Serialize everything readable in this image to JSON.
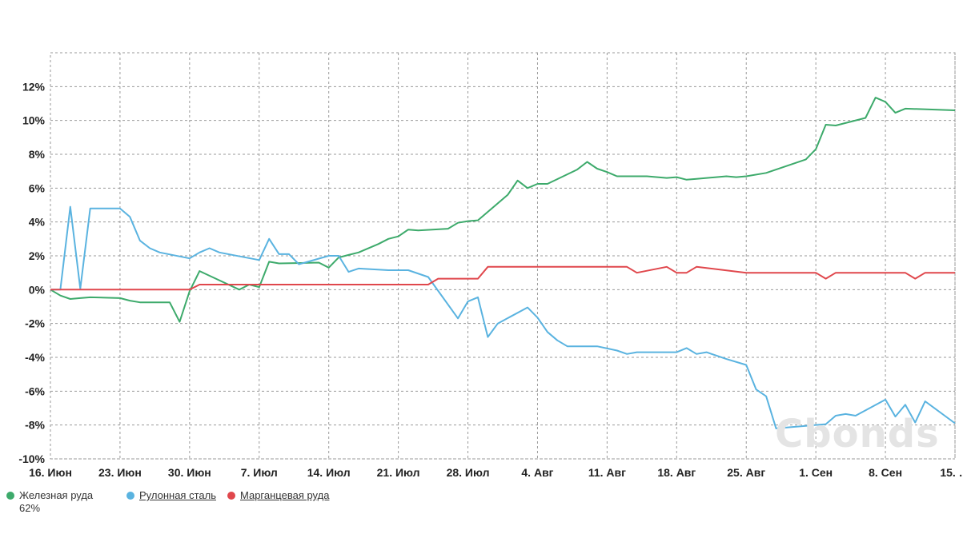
{
  "watermark": "Cbonds",
  "legend": [
    {
      "label": "Железная руда 62%",
      "color": "#3daa6b",
      "link": false
    },
    {
      "label": "Рулонная сталь",
      "color": "#5ab3e0",
      "link": true
    },
    {
      "label": "Марганцевая руда",
      "color": "#e0474c",
      "link": true
    }
  ],
  "chart_data": {
    "type": "line",
    "x_tick_labels": [
      "16. Июн",
      "23. Июн",
      "30. Июн",
      "7. Июл",
      "14. Июл",
      "21. Июл",
      "28. Июл",
      "4. Авг",
      "11. Авг",
      "18. Авг",
      "25. Авг",
      "1. Сен",
      "8. Сен",
      "15. …"
    ],
    "x_range_days": [
      0,
      91
    ],
    "y_tick_labels": [
      "12%",
      "10%",
      "8%",
      "6%",
      "4%",
      "2%",
      "0%",
      "-2%",
      "-4%",
      "-6%",
      "-8%",
      "-10%"
    ],
    "ylim": [
      -10,
      14
    ],
    "y_unit": "%",
    "grid": true,
    "legend_position": "bottom-left",
    "series": [
      {
        "name": "Железная руда 62%",
        "color": "#3daa6b",
        "points": [
          [
            0,
            0
          ],
          [
            1,
            -0.35
          ],
          [
            2,
            -0.55
          ],
          [
            3,
            -0.5
          ],
          [
            4,
            -0.45
          ],
          [
            7,
            -0.5
          ],
          [
            8,
            -0.65
          ],
          [
            9,
            -0.75
          ],
          [
            12,
            -0.75
          ],
          [
            13,
            -1.9
          ],
          [
            14,
            -0.1
          ],
          [
            15,
            1.1
          ],
          [
            19,
            0
          ],
          [
            20,
            0.3
          ],
          [
            21,
            0.15
          ],
          [
            22,
            1.65
          ],
          [
            23,
            1.55
          ],
          [
            27,
            1.6
          ],
          [
            28,
            1.3
          ],
          [
            29,
            1.9
          ],
          [
            30,
            2.05
          ],
          [
            31,
            2.2
          ],
          [
            33,
            2.7
          ],
          [
            34,
            3.0
          ],
          [
            35,
            3.15
          ],
          [
            36,
            3.55
          ],
          [
            37,
            3.5
          ],
          [
            40,
            3.6
          ],
          [
            41,
            3.95
          ],
          [
            42,
            4.05
          ],
          [
            43,
            4.1
          ],
          [
            44,
            4.6
          ],
          [
            46,
            5.6
          ],
          [
            47,
            6.45
          ],
          [
            48,
            6.0
          ],
          [
            49,
            6.25
          ],
          [
            50,
            6.25
          ],
          [
            53,
            7.1
          ],
          [
            54,
            7.55
          ],
          [
            55,
            7.15
          ],
          [
            56,
            6.95
          ],
          [
            57,
            6.7
          ],
          [
            60,
            6.7
          ],
          [
            62,
            6.6
          ],
          [
            63,
            6.65
          ],
          [
            64,
            6.5
          ],
          [
            65,
            6.55
          ],
          [
            68,
            6.7
          ],
          [
            69,
            6.65
          ],
          [
            70,
            6.7
          ],
          [
            72,
            6.9
          ],
          [
            76,
            7.7
          ],
          [
            77,
            8.3
          ],
          [
            78,
            9.75
          ],
          [
            79,
            9.7
          ],
          [
            82,
            10.15
          ],
          [
            83,
            11.35
          ],
          [
            84,
            11.1
          ],
          [
            85,
            10.45
          ],
          [
            86,
            10.7
          ],
          [
            91,
            10.6
          ]
        ]
      },
      {
        "name": "Рулонная сталь",
        "color": "#5ab3e0",
        "points": [
          [
            0,
            0
          ],
          [
            1,
            0
          ],
          [
            2,
            4.9
          ],
          [
            3,
            0.05
          ],
          [
            4,
            4.8
          ],
          [
            7,
            4.8
          ],
          [
            8,
            4.3
          ],
          [
            9,
            2.9
          ],
          [
            10,
            2.45
          ],
          [
            11,
            2.2
          ],
          [
            14,
            1.85
          ],
          [
            15,
            2.2
          ],
          [
            16,
            2.45
          ],
          [
            17,
            2.2
          ],
          [
            21,
            1.75
          ],
          [
            22,
            3.0
          ],
          [
            23,
            2.1
          ],
          [
            24,
            2.1
          ],
          [
            25,
            1.5
          ],
          [
            28,
            2.0
          ],
          [
            29,
            2.0
          ],
          [
            30,
            1.05
          ],
          [
            31,
            1.25
          ],
          [
            34,
            1.15
          ],
          [
            36,
            1.15
          ],
          [
            38,
            0.75
          ],
          [
            41,
            -1.7
          ],
          [
            42,
            -0.7
          ],
          [
            43,
            -0.45
          ],
          [
            44,
            -2.8
          ],
          [
            45,
            -2.0
          ],
          [
            48,
            -1.05
          ],
          [
            49,
            -1.65
          ],
          [
            50,
            -2.5
          ],
          [
            51,
            -3.0
          ],
          [
            52,
            -3.35
          ],
          [
            55,
            -3.35
          ],
          [
            57,
            -3.6
          ],
          [
            58,
            -3.8
          ],
          [
            59,
            -3.7
          ],
          [
            63,
            -3.7
          ],
          [
            64,
            -3.45
          ],
          [
            65,
            -3.8
          ],
          [
            66,
            -3.7
          ],
          [
            68,
            -4.1
          ],
          [
            70,
            -4.45
          ],
          [
            71,
            -5.9
          ],
          [
            72,
            -6.3
          ],
          [
            73,
            -8.2
          ],
          [
            78,
            -7.95
          ],
          [
            79,
            -7.45
          ],
          [
            80,
            -7.35
          ],
          [
            81,
            -7.45
          ],
          [
            84,
            -6.5
          ],
          [
            85,
            -7.5
          ],
          [
            86,
            -6.8
          ],
          [
            87,
            -7.85
          ],
          [
            88,
            -6.6
          ],
          [
            91,
            -7.9
          ]
        ]
      },
      {
        "name": "Марганцевая руда",
        "color": "#e0474c",
        "points": [
          [
            0,
            0
          ],
          [
            14,
            0
          ],
          [
            15,
            0.3
          ],
          [
            38,
            0.3
          ],
          [
            39,
            0.65
          ],
          [
            43,
            0.65
          ],
          [
            44,
            1.35
          ],
          [
            58,
            1.35
          ],
          [
            59,
            1.0
          ],
          [
            62,
            1.35
          ],
          [
            63,
            1.0
          ],
          [
            64,
            1.0
          ],
          [
            65,
            1.35
          ],
          [
            70,
            1.0
          ],
          [
            77,
            1.0
          ],
          [
            78,
            0.65
          ],
          [
            79,
            1.0
          ],
          [
            86,
            1.0
          ],
          [
            87,
            0.65
          ],
          [
            88,
            1.0
          ],
          [
            91,
            1.0
          ]
        ]
      }
    ]
  }
}
